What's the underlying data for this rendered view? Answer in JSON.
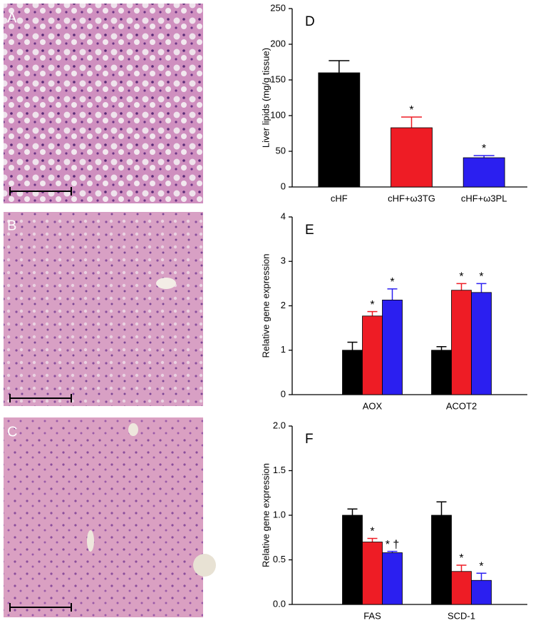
{
  "image_panels": [
    "A",
    "B",
    "C"
  ],
  "chart_data": [
    {
      "type": "bar",
      "panel_label": "D",
      "ylabel": "Liver lipids (mg/g tissue)",
      "categories": [
        "cHF",
        "cHF+ω3TG",
        "cHF+ω3PL"
      ],
      "values": [
        160,
        83,
        41
      ],
      "errors": [
        17,
        15,
        3
      ],
      "colors": [
        "#000000",
        "#ee1c25",
        "#2b1ff0"
      ],
      "annotations": [
        null,
        "*",
        "*"
      ],
      "ylim": [
        0,
        250
      ],
      "yticks": [
        0,
        50,
        100,
        150,
        200,
        250
      ]
    },
    {
      "type": "grouped-bar",
      "panel_label": "E",
      "ylabel": "Relative gene expression",
      "categories": [
        "AOX",
        "ACOT2"
      ],
      "series": [
        {
          "color": "#000000",
          "values": [
            1.0,
            1.0
          ],
          "errors": [
            0.18,
            0.08
          ],
          "annotations": [
            null,
            null
          ]
        },
        {
          "color": "#ee1c25",
          "values": [
            1.77,
            2.35
          ],
          "errors": [
            0.1,
            0.15
          ],
          "annotations": [
            "*",
            "*"
          ]
        },
        {
          "color": "#2b1ff0",
          "values": [
            2.13,
            2.3
          ],
          "errors": [
            0.25,
            0.2
          ],
          "annotations": [
            "*",
            "*"
          ]
        }
      ],
      "ylim": [
        0,
        4
      ],
      "yticks": [
        0,
        1,
        2,
        3,
        4
      ]
    },
    {
      "type": "grouped-bar",
      "panel_label": "F",
      "ylabel": "Relative gene expression",
      "categories": [
        "FAS",
        "SCD-1"
      ],
      "series": [
        {
          "color": "#000000",
          "values": [
            1.0,
            1.0
          ],
          "errors": [
            0.07,
            0.15
          ],
          "annotations": [
            null,
            null
          ]
        },
        {
          "color": "#ee1c25",
          "values": [
            0.7,
            0.37
          ],
          "errors": [
            0.04,
            0.07
          ],
          "annotations": [
            "*",
            "*"
          ]
        },
        {
          "color": "#2b1ff0",
          "values": [
            0.58,
            0.27
          ],
          "errors": [
            0.015,
            0.08
          ],
          "annotations": [
            "* †",
            "*"
          ]
        }
      ],
      "ylim": [
        0,
        2
      ],
      "yticks": [
        {
          "value": 0,
          "label": "0.0"
        },
        {
          "value": 0.5,
          "label": "0.5"
        },
        {
          "value": 1,
          "label": "1.0"
        },
        {
          "value": 1.5,
          "label": "1.5"
        },
        {
          "value": 2,
          "label": "2.0"
        }
      ]
    }
  ]
}
